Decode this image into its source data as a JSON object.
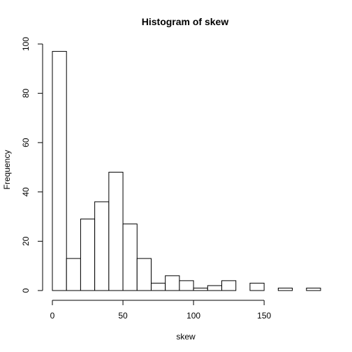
{
  "chart_data": {
    "type": "bar",
    "title": "Histogram of skew",
    "xlabel": "skew",
    "ylabel": "Frequency",
    "bin_width": 10,
    "bins": [
      {
        "x0": 0,
        "x1": 10,
        "count": 97
      },
      {
        "x0": 10,
        "x1": 20,
        "count": 13
      },
      {
        "x0": 20,
        "x1": 30,
        "count": 29
      },
      {
        "x0": 30,
        "x1": 40,
        "count": 36
      },
      {
        "x0": 40,
        "x1": 50,
        "count": 48
      },
      {
        "x0": 50,
        "x1": 60,
        "count": 27
      },
      {
        "x0": 60,
        "x1": 70,
        "count": 13
      },
      {
        "x0": 70,
        "x1": 80,
        "count": 3
      },
      {
        "x0": 80,
        "x1": 90,
        "count": 6
      },
      {
        "x0": 90,
        "x1": 100,
        "count": 4
      },
      {
        "x0": 100,
        "x1": 110,
        "count": 1
      },
      {
        "x0": 110,
        "x1": 120,
        "count": 2
      },
      {
        "x0": 120,
        "x1": 130,
        "count": 4
      },
      {
        "x0": 130,
        "x1": 140,
        "count": 0
      },
      {
        "x0": 140,
        "x1": 150,
        "count": 3
      },
      {
        "x0": 150,
        "x1": 160,
        "count": 0
      },
      {
        "x0": 160,
        "x1": 170,
        "count": 1
      },
      {
        "x0": 170,
        "x1": 180,
        "count": 0
      },
      {
        "x0": 180,
        "x1": 190,
        "count": 1
      }
    ],
    "xlim": [
      0,
      190
    ],
    "ylim": [
      0,
      100
    ],
    "x_ticks": [
      0,
      50,
      100,
      150
    ],
    "y_ticks": [
      0,
      20,
      40,
      60,
      80,
      100
    ],
    "grid": false,
    "colors": {
      "bar_fill": "#ffffff",
      "bar_stroke": "#000000"
    }
  }
}
